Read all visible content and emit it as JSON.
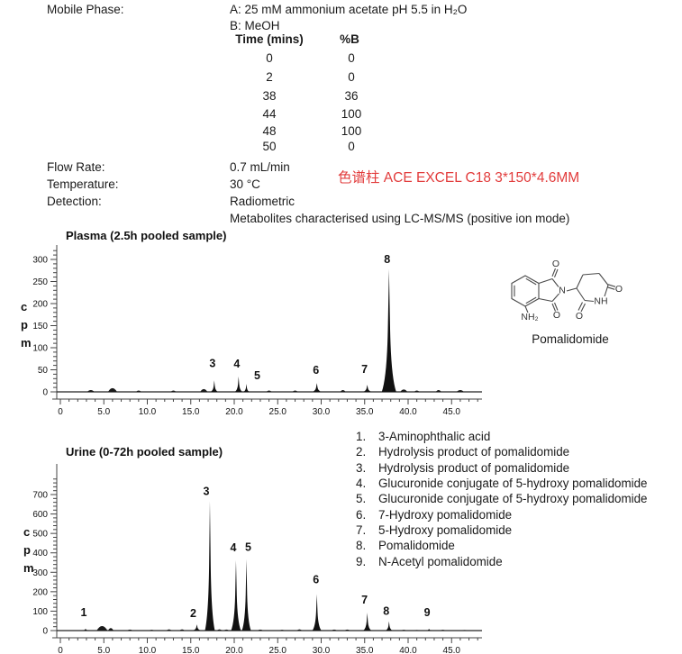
{
  "method": {
    "mobile_phase_label": "Mobile Phase:",
    "mobile_phase_a": "A: 25 mM ammonium acetate pH 5.5 in H₂O",
    "mobile_phase_b": "B: MeOH",
    "gradient": {
      "col_time": "Time (mins)",
      "col_b": "%B",
      "rows": [
        [
          "0",
          "0"
        ],
        [
          "2",
          "0"
        ],
        [
          "38",
          "36"
        ],
        [
          "44",
          "100"
        ],
        [
          "48",
          "100"
        ],
        [
          "50",
          "0"
        ]
      ]
    },
    "flow_rate_label": "Flow Rate:",
    "flow_rate": "0.7 mL/min",
    "temperature_label": "Temperature:",
    "temperature": "30 °C",
    "detection_label": "Detection:",
    "detection": "Radiometric",
    "detection_note": "Metabolites characterised using LC-MS/MS (positive ion mode)",
    "column_note": {
      "text": "色谱柱 ACE EXCEL C18 3*150*4.6MM",
      "color": "#e23c3c"
    }
  },
  "structure": {
    "caption": "Pomalidomide",
    "atoms": {
      "o": "O",
      "n": "N",
      "nh": "NH",
      "nh2": "NH₂"
    }
  },
  "metabolites": {
    "items": [
      {
        "num": "1.",
        "text": "3-Aminophthalic acid"
      },
      {
        "num": "2.",
        "text": "Hydrolysis product of pomalidomide"
      },
      {
        "num": "3.",
        "text": "Hydrolysis product of pomalidomide"
      },
      {
        "num": "4.",
        "text": "Glucuronide conjugate of 5-hydroxy pomalidomide"
      },
      {
        "num": "5.",
        "text": "Glucuronide conjugate of 5-hydroxy pomalidomide"
      },
      {
        "num": "6.",
        "text": "7-Hydroxy pomalidomide"
      },
      {
        "num": "7.",
        "text": "5-Hydroxy pomalidomide"
      },
      {
        "num": "8.",
        "text": "Pomalidomide"
      },
      {
        "num": "9.",
        "text": "N-Acetyl pomalidomide"
      }
    ]
  },
  "chart_data": [
    {
      "type": "area",
      "title": "Plasma (2.5h pooled sample)",
      "ylabel": "cpm",
      "xlim": [
        0,
        48.5
      ],
      "ylim": [
        0,
        320
      ],
      "x_ticks": [
        0,
        5,
        10,
        15,
        20,
        25,
        30,
        35,
        40,
        45
      ],
      "x_tick_labels": [
        "0",
        "5.0",
        "10.0",
        "15.0",
        "20.0",
        "25.0",
        "30.0",
        "35.0",
        "40.0",
        "45.0"
      ],
      "x_minor_step": 1,
      "x_minor_max": 48,
      "y_ticks": [
        0,
        50,
        100,
        150,
        200,
        250,
        300
      ],
      "y_minor_step": 10,
      "y_minor_max": 320,
      "grid": false,
      "peaks": [
        {
          "label": "3",
          "rt": 17.7,
          "cpm": 26,
          "w": 4,
          "ldx": -2,
          "ldy": -15
        },
        {
          "label": "4",
          "rt": 20.5,
          "cpm": 35,
          "w": 4,
          "ldx": -2,
          "ldy": -10
        },
        {
          "label": "5",
          "rt": 21.4,
          "cpm": 18,
          "w": 3.5,
          "ldx": 12,
          "ldy": -5
        },
        {
          "label": "6",
          "rt": 29.5,
          "cpm": 20,
          "w": 5,
          "ldx": -1,
          "ldy": -10
        },
        {
          "label": "7",
          "rt": 35.3,
          "cpm": 16,
          "w": 5,
          "ldx": -3,
          "ldy": -13
        },
        {
          "label": "8",
          "rt": 37.8,
          "cpm": 278,
          "w": 8,
          "ldx": -2,
          "ldy": -7
        }
      ],
      "noise": [
        {
          "rt": 3.5,
          "cpm": 4,
          "w": 4
        },
        {
          "rt": 6.0,
          "cpm": 8,
          "w": 5
        },
        {
          "rt": 9.0,
          "cpm": 3,
          "w": 3
        },
        {
          "rt": 13.0,
          "cpm": 3,
          "w": 3
        },
        {
          "rt": 16.5,
          "cpm": 6,
          "w": 4
        },
        {
          "rt": 24.0,
          "cpm": 3,
          "w": 3
        },
        {
          "rt": 27.0,
          "cpm": 3,
          "w": 3
        },
        {
          "rt": 32.5,
          "cpm": 4,
          "w": 3
        },
        {
          "rt": 39.5,
          "cpm": 5,
          "w": 4
        },
        {
          "rt": 41.0,
          "cpm": 3,
          "w": 3
        },
        {
          "rt": 43.5,
          "cpm": 4,
          "w": 3
        },
        {
          "rt": 46.0,
          "cpm": 4,
          "w": 4
        }
      ]
    },
    {
      "type": "area",
      "title": "Urine (0-72h pooled sample)",
      "ylabel": "cpm",
      "xlim": [
        0,
        48.5
      ],
      "ylim": [
        0,
        800
      ],
      "x_ticks": [
        0,
        5,
        10,
        15,
        20,
        25,
        30,
        35,
        40,
        45
      ],
      "x_tick_labels": [
        "0",
        "5.0",
        "10.0",
        "15.0",
        "20.0",
        "25.0",
        "30.0",
        "35.0",
        "40.0",
        "45.0"
      ],
      "x_minor_step": 1,
      "x_minor_max": 48,
      "y_ticks": [
        0,
        100,
        200,
        300,
        400,
        500,
        600,
        700
      ],
      "y_minor_step": 20,
      "y_minor_max": 780,
      "grid": false,
      "peaks": [
        {
          "label": "1",
          "rt": 2.9,
          "cpm": 10,
          "w": 4,
          "ldx": -2,
          "ldy": -14
        },
        {
          "label": "2",
          "rt": 15.7,
          "cpm": 32,
          "w": 4.5,
          "ldx": -4,
          "ldy": -8
        },
        {
          "label": "3",
          "rt": 17.2,
          "cpm": 665,
          "w": 5.5,
          "ldx": -4,
          "ldy": -7
        },
        {
          "label": "4",
          "rt": 20.2,
          "cpm": 362,
          "w": 5.5,
          "ldx": -3,
          "ldy": -10
        },
        {
          "label": "5",
          "rt": 21.4,
          "cpm": 368,
          "w": 5,
          "ldx": 2,
          "ldy": -9
        },
        {
          "label": "6",
          "rt": 29.5,
          "cpm": 188,
          "w": 5,
          "ldx": -1,
          "ldy": -12
        },
        {
          "label": "7",
          "rt": 35.3,
          "cpm": 92,
          "w": 4.5,
          "ldx": -3,
          "ldy": -10
        },
        {
          "label": "8",
          "rt": 37.8,
          "cpm": 48,
          "w": 4,
          "ldx": -3,
          "ldy": -7
        },
        {
          "label": "9",
          "rt": 42.4,
          "cpm": 9,
          "w": 4,
          "ldx": -2,
          "ldy": -14
        }
      ],
      "noise": [
        {
          "rt": 4.8,
          "cpm": 22,
          "w": 6
        },
        {
          "rt": 5.8,
          "cpm": 12,
          "w": 3
        },
        {
          "rt": 8.0,
          "cpm": 5,
          "w": 3
        },
        {
          "rt": 10.5,
          "cpm": 4,
          "w": 3
        },
        {
          "rt": 12.5,
          "cpm": 6,
          "w": 3
        },
        {
          "rt": 14.0,
          "cpm": 6,
          "w": 3
        },
        {
          "rt": 18.3,
          "cpm": 6,
          "w": 3
        },
        {
          "rt": 19.1,
          "cpm": 5,
          "w": 3
        },
        {
          "rt": 23.0,
          "cpm": 5,
          "w": 3
        },
        {
          "rt": 25.5,
          "cpm": 4,
          "w": 3
        },
        {
          "rt": 27.5,
          "cpm": 6,
          "w": 3
        },
        {
          "rt": 31.5,
          "cpm": 5,
          "w": 3
        },
        {
          "rt": 33.0,
          "cpm": 5,
          "w": 3
        },
        {
          "rt": 39.5,
          "cpm": 4,
          "w": 3
        },
        {
          "rt": 41.0,
          "cpm": 3,
          "w": 3
        },
        {
          "rt": 44.0,
          "cpm": 4,
          "w": 3
        },
        {
          "rt": 46.5,
          "cpm": 3,
          "w": 3
        }
      ]
    }
  ]
}
